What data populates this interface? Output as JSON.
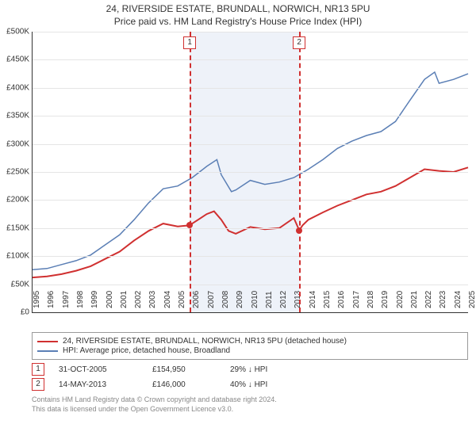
{
  "title": "24, RIVERSIDE ESTATE, BRUNDALL, NORWICH, NR13 5PU",
  "subtitle": "Price paid vs. HM Land Registry's House Price Index (HPI)",
  "chart": {
    "type": "line",
    "y_axis": {
      "min": 0,
      "max": 500000,
      "step": 50000,
      "format_prefix": "£",
      "format_suffix": "K",
      "divide_by": 1000
    },
    "x_axis": {
      "min": 1995,
      "max": 2025,
      "step": 1
    },
    "grid_color": "#e5e5e5",
    "axis_color": "#333333",
    "background_color": "#ffffff",
    "shaded_region": {
      "from": 2005.83,
      "to": 2013.37,
      "color": "#eef2f9"
    },
    "series": [
      {
        "id": "price_paid",
        "label": "24, RIVERSIDE ESTATE, BRUNDALL, NORWICH, NR13 5PU (detached house)",
        "color": "#d03030",
        "width": 2,
        "data": [
          [
            1995,
            62000
          ],
          [
            1996,
            64000
          ],
          [
            1997,
            68000
          ],
          [
            1998,
            74000
          ],
          [
            1999,
            82000
          ],
          [
            2000,
            95000
          ],
          [
            2001,
            108000
          ],
          [
            2002,
            128000
          ],
          [
            2003,
            145000
          ],
          [
            2004,
            158000
          ],
          [
            2005,
            153000
          ],
          [
            2005.83,
            154950
          ],
          [
            2006,
            158000
          ],
          [
            2007,
            175000
          ],
          [
            2007.5,
            180000
          ],
          [
            2008,
            165000
          ],
          [
            2008.5,
            145000
          ],
          [
            2009,
            140000
          ],
          [
            2010,
            152000
          ],
          [
            2011,
            148000
          ],
          [
            2012,
            150000
          ],
          [
            2013,
            168000
          ],
          [
            2013.37,
            146000
          ],
          [
            2013.6,
            155000
          ],
          [
            2014,
            165000
          ],
          [
            2015,
            178000
          ],
          [
            2016,
            190000
          ],
          [
            2017,
            200000
          ],
          [
            2018,
            210000
          ],
          [
            2019,
            215000
          ],
          [
            2020,
            225000
          ],
          [
            2021,
            240000
          ],
          [
            2022,
            255000
          ],
          [
            2023,
            252000
          ],
          [
            2024,
            250000
          ],
          [
            2025,
            258000
          ]
        ]
      },
      {
        "id": "hpi",
        "label": "HPI: Average price, detached house, Broadland",
        "color": "#5b7fb5",
        "width": 1.5,
        "data": [
          [
            1995,
            76000
          ],
          [
            1996,
            78000
          ],
          [
            1997,
            85000
          ],
          [
            1998,
            92000
          ],
          [
            1999,
            102000
          ],
          [
            2000,
            120000
          ],
          [
            2001,
            138000
          ],
          [
            2002,
            165000
          ],
          [
            2003,
            195000
          ],
          [
            2004,
            220000
          ],
          [
            2005,
            225000
          ],
          [
            2006,
            240000
          ],
          [
            2007,
            260000
          ],
          [
            2007.7,
            272000
          ],
          [
            2008,
            245000
          ],
          [
            2008.7,
            215000
          ],
          [
            2009,
            218000
          ],
          [
            2010,
            235000
          ],
          [
            2011,
            228000
          ],
          [
            2012,
            232000
          ],
          [
            2013,
            240000
          ],
          [
            2014,
            255000
          ],
          [
            2015,
            272000
          ],
          [
            2016,
            292000
          ],
          [
            2017,
            305000
          ],
          [
            2018,
            315000
          ],
          [
            2019,
            322000
          ],
          [
            2020,
            340000
          ],
          [
            2021,
            378000
          ],
          [
            2022,
            415000
          ],
          [
            2022.7,
            428000
          ],
          [
            2023,
            408000
          ],
          [
            2024,
            415000
          ],
          [
            2025,
            425000
          ]
        ]
      }
    ],
    "event_lines": [
      {
        "num": "1",
        "x": 2005.83,
        "dot_y": 154950
      },
      {
        "num": "2",
        "x": 2013.37,
        "dot_y": 146000
      }
    ],
    "event_line_color": "#d03030",
    "dot_color": "#d03030"
  },
  "legend": {
    "border_color": "#999999",
    "items": [
      {
        "color": "#d03030",
        "label": "24, RIVERSIDE ESTATE, BRUNDALL, NORWICH, NR13 5PU (detached house)"
      },
      {
        "color": "#5b7fb5",
        "label": "HPI: Average price, detached house, Broadland"
      }
    ]
  },
  "events": [
    {
      "num": "1",
      "date": "31-OCT-2005",
      "price": "£154,950",
      "delta": "29% ↓ HPI"
    },
    {
      "num": "2",
      "date": "14-MAY-2013",
      "price": "£146,000",
      "delta": "40% ↓ HPI"
    }
  ],
  "attribution": {
    "line1": "Contains HM Land Registry data © Crown copyright and database right 2024.",
    "line2": "This data is licensed under the Open Government Licence v3.0."
  }
}
